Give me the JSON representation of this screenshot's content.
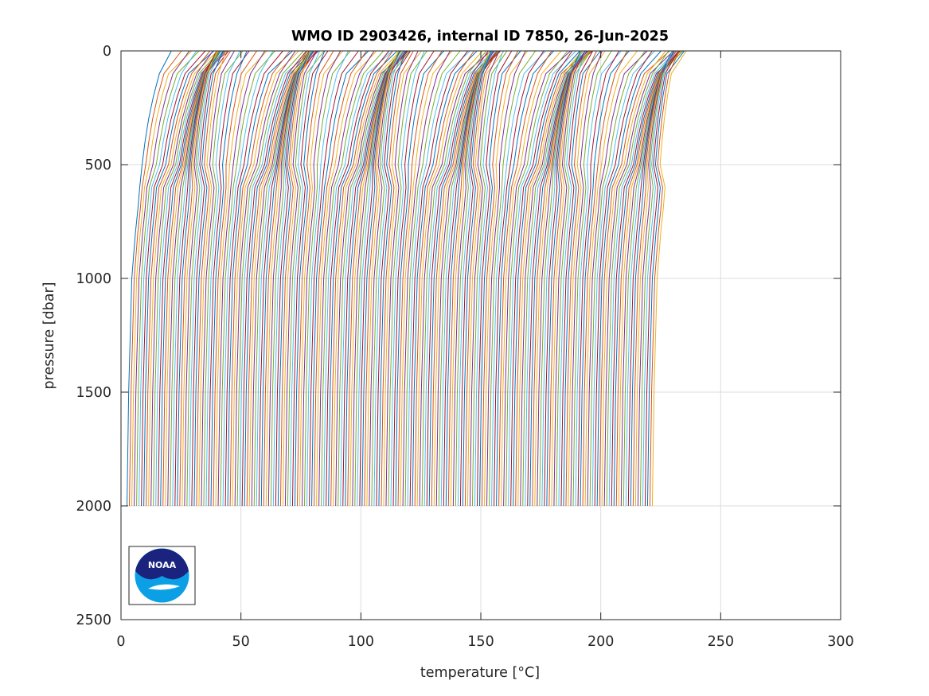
{
  "chart_data": {
    "type": "line",
    "title": "WMO ID 2903426, internal ID 7850, 26-Jun-2025",
    "xlabel": "temperature [°C]",
    "ylabel": "pressure [dbar]",
    "xlim": [
      0,
      300
    ],
    "ylim": [
      2500,
      0
    ],
    "y_reversed": true,
    "x_ticks": [
      "0",
      "50",
      "100",
      "150",
      "200",
      "250",
      "300"
    ],
    "y_ticks": [
      "0",
      "500",
      "1000",
      "1500",
      "2000",
      "2500"
    ],
    "grid": true,
    "legend": "none",
    "profile_count": 220,
    "profile_offset_step": 1,
    "pressure_levels": [
      0,
      100,
      200,
      300,
      400,
      500,
      600,
      700,
      800,
      1000,
      1500,
      2000
    ],
    "base_profile_temperature": [
      21,
      16,
      13.5,
      11.5,
      10,
      8.8,
      7.8,
      7.0,
      6.0,
      4.5,
      3.2,
      2.5
    ],
    "series_colors": [
      "#0072BD",
      "#D95319",
      "#EDB120",
      "#7E2F8E",
      "#77AC30",
      "#4DBEEE",
      "#A2142F"
    ]
  },
  "logo": {
    "name": "NOAA",
    "text": "NOAA",
    "colors": {
      "dark": "#1a237e",
      "light": "#0ba0e6"
    }
  }
}
